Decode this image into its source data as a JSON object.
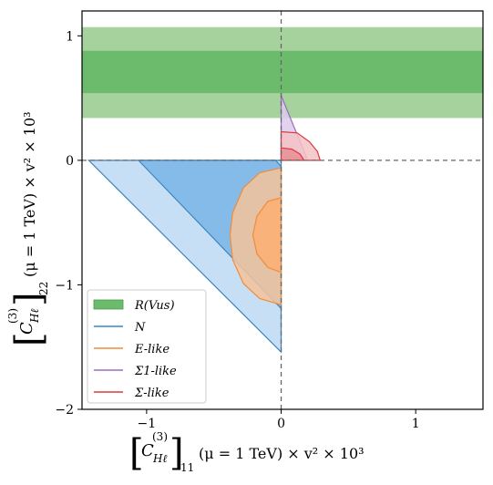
{
  "chart_data": {
    "type": "area",
    "xlabel": {
      "prefix": "C",
      "sup": "(3)",
      "sub": "Hℓ",
      "outer_sub": "11",
      "rest": "(μ = 1 TeV) × v² × 10³"
    },
    "ylabel": {
      "prefix": "C",
      "sup": "(3)",
      "sub": "Hℓ",
      "outer_sub": "22",
      "rest": "(μ = 1 TeV) × v² × 10³"
    },
    "xlim": [
      -1.48,
      1.5
    ],
    "ylim": [
      -2.0,
      1.2
    ],
    "xticks": [
      -1,
      0,
      1
    ],
    "xtick_labels": [
      "−1",
      "0",
      "1"
    ],
    "yticks": [
      -2,
      -1,
      0,
      1
    ],
    "ytick_labels": [
      "−2",
      "−1",
      "0",
      "1"
    ],
    "reference_lines": {
      "x": 0,
      "y": 0,
      "style": "dashed",
      "color": "#666666"
    },
    "bands": [
      {
        "name": "R(Vus) outer",
        "y_range": [
          0.34,
          1.07
        ],
        "color": "#a6d39d"
      },
      {
        "name": "R(Vus) inner",
        "y_range": [
          0.54,
          0.88
        ],
        "color": "#6cbb6c"
      }
    ],
    "regions": [
      {
        "series": "N",
        "level": "outer",
        "fill": "#bcd9f2",
        "edge": "#3a86c4",
        "points": [
          [
            -1.43,
            0.0
          ],
          [
            0.0,
            0.0
          ],
          [
            0.0,
            -1.54
          ]
        ]
      },
      {
        "series": "N",
        "level": "inner",
        "fill": "#79b5e6",
        "edge": "#3a86c4",
        "points": [
          [
            -1.06,
            0.0
          ],
          [
            -0.04,
            0.0
          ],
          [
            0.0,
            -0.05
          ],
          [
            0.0,
            -1.19
          ]
        ]
      },
      {
        "series": "E-like",
        "level": "outer",
        "fill": "#f5c39a",
        "edge": "#f08c3a",
        "points": [
          [
            0.0,
            -0.06
          ],
          [
            -0.16,
            -0.1
          ],
          [
            -0.28,
            -0.22
          ],
          [
            -0.36,
            -0.42
          ],
          [
            -0.38,
            -0.6
          ],
          [
            -0.36,
            -0.8
          ],
          [
            -0.28,
            -0.99
          ],
          [
            -0.16,
            -1.11
          ],
          [
            0.0,
            -1.16
          ]
        ]
      },
      {
        "series": "E-like",
        "level": "inner",
        "fill": "#fbaf72",
        "edge": "#f08c3a",
        "points": [
          [
            0.0,
            -0.3
          ],
          [
            -0.1,
            -0.33
          ],
          [
            -0.18,
            -0.45
          ],
          [
            -0.21,
            -0.6
          ],
          [
            -0.18,
            -0.75
          ],
          [
            -0.1,
            -0.86
          ],
          [
            0.0,
            -0.9
          ]
        ]
      },
      {
        "series": "Σ1-like",
        "level": "outer",
        "fill": "#dccbeb",
        "edge": "#9a6cbf",
        "points": [
          [
            0.0,
            0.52
          ],
          [
            0.19,
            0.02
          ],
          [
            0.0,
            0.02
          ]
        ]
      },
      {
        "series": "Σ-like",
        "level": "outer",
        "fill": "#f4c2c6",
        "edge": "#d93a3f",
        "points": [
          [
            0.0,
            0.23
          ],
          [
            0.12,
            0.22
          ],
          [
            0.21,
            0.15
          ],
          [
            0.27,
            0.07
          ],
          [
            0.29,
            0.0
          ],
          [
            0.0,
            0.0
          ]
        ]
      },
      {
        "series": "Σ-like",
        "level": "inner",
        "fill": "#e88f95",
        "edge": "#d93a3f",
        "points": [
          [
            0.0,
            0.1
          ],
          [
            0.08,
            0.09
          ],
          [
            0.14,
            0.05
          ],
          [
            0.17,
            0.0
          ],
          [
            0.0,
            0.0
          ]
        ]
      }
    ],
    "legend": {
      "placement": "lower-left",
      "entries": [
        {
          "label": "R(Vus)",
          "kind": "patch",
          "color": "#6cbb6c"
        },
        {
          "label": "N",
          "kind": "line",
          "color": "#3a86c4"
        },
        {
          "label": "E-like",
          "kind": "line",
          "color": "#f08c3a"
        },
        {
          "label": "Σ1-like",
          "kind": "line",
          "color": "#9a6cbf"
        },
        {
          "label": "Σ-like",
          "kind": "line",
          "color": "#d93a3f"
        }
      ]
    }
  }
}
